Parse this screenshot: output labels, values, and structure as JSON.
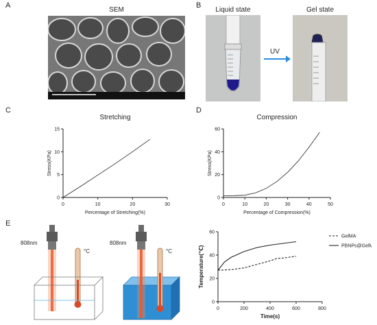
{
  "panels": {
    "a": {
      "letter": "A",
      "title": "SEM"
    },
    "b": {
      "letter": "B",
      "left_title": "Liquid state",
      "right_title": "Gel state",
      "arrow_label": "UV"
    },
    "c": {
      "letter": "C"
    },
    "d": {
      "letter": "D"
    },
    "e": {
      "letter": "E"
    }
  },
  "illustration": {
    "laser_label_left": "808nm",
    "laser_label_right": "808nm",
    "thermo_unit_left": "°C",
    "thermo_unit_right": "°C",
    "colors": {
      "laser": "#e8431c",
      "water": "#2f8fd4",
      "laser_head": "#5a5a5a"
    }
  },
  "chart_data": [
    {
      "type": "line",
      "title": "Stretching",
      "xlabel": "Percentage of Stretching(%)",
      "ylabel": "Stress(KPa)",
      "xlim": [
        0,
        30
      ],
      "ylim": [
        0,
        15
      ],
      "xticks": [
        0,
        10,
        20,
        30
      ],
      "yticks": [
        0,
        5,
        10,
        15
      ],
      "series": [
        {
          "x": [
            0,
            5,
            10,
            15,
            20,
            25
          ],
          "y": [
            0,
            2.4,
            4.9,
            7.4,
            10.0,
            12.7
          ]
        }
      ],
      "grid": false
    },
    {
      "type": "line",
      "title": "Compression",
      "xlabel": "Percentage of Compression(%)",
      "ylabel": "Stress(KPa)",
      "xlim": [
        0,
        50
      ],
      "ylim": [
        0,
        60
      ],
      "xticks": [
        0,
        10,
        20,
        30,
        40,
        50
      ],
      "yticks": [
        0,
        20,
        40,
        60
      ],
      "series": [
        {
          "x": [
            0,
            5,
            10,
            15,
            20,
            25,
            30,
            35,
            40,
            45
          ],
          "y": [
            1.5,
            1.6,
            2.0,
            4.0,
            8.0,
            14.0,
            22.0,
            32.0,
            44.0,
            57.0
          ]
        }
      ],
      "grid": false
    },
    {
      "type": "line",
      "title": "",
      "xlabel": "Time(s)",
      "ylabel": "Temperature(℃)",
      "xlim": [
        0,
        800
      ],
      "ylim": [
        0,
        60
      ],
      "xticks": [
        0,
        200,
        400,
        600,
        800
      ],
      "yticks": [
        0,
        20,
        40,
        60
      ],
      "legend": "right",
      "series": [
        {
          "name": "GelMA",
          "style": "dashed",
          "x": [
            0,
            100,
            200,
            300,
            400,
            450,
            500,
            600
          ],
          "y": [
            27,
            27.5,
            29,
            32,
            35,
            37,
            37.5,
            39
          ]
        },
        {
          "name": "PBNPs@GelMA",
          "style": "solid",
          "x": [
            0,
            50,
            100,
            200,
            300,
            400,
            500,
            600
          ],
          "y": [
            27,
            34,
            38,
            43,
            46.5,
            48.5,
            50,
            51.5
          ]
        }
      ],
      "grid": false
    }
  ]
}
